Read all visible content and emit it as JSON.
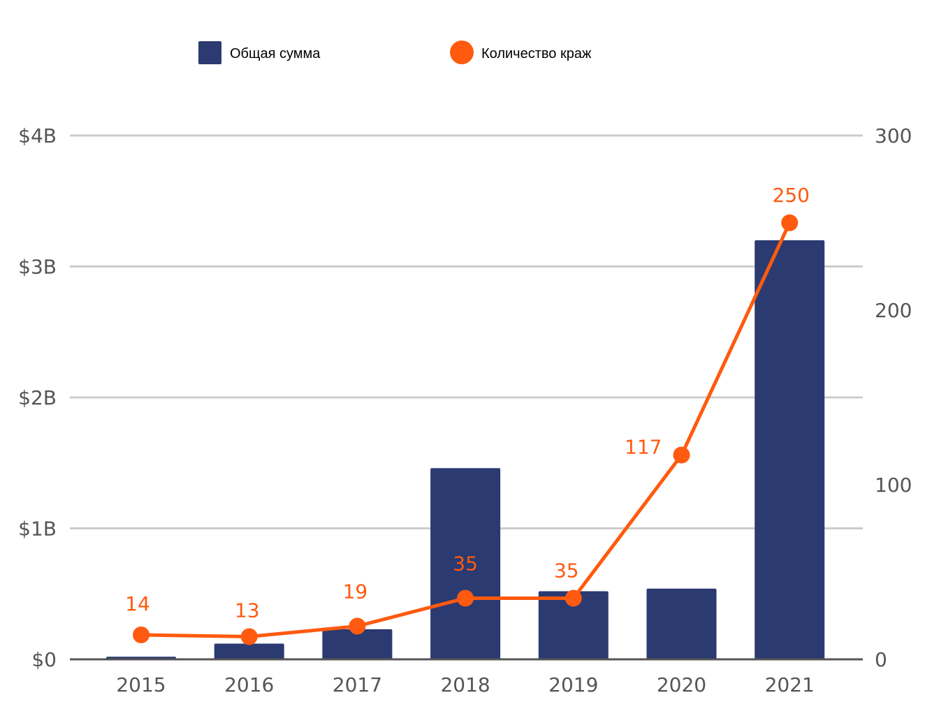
{
  "chart_data": {
    "type": "bar",
    "categories": [
      "2015",
      "2016",
      "2017",
      "2018",
      "2019",
      "2020",
      "2021"
    ],
    "series": [
      {
        "name": "Общая сумма",
        "type": "bar",
        "axis": "left",
        "color": "#2b3a70",
        "values": [
          0.02,
          0.12,
          0.23,
          1.46,
          0.52,
          0.54,
          3.2
        ]
      },
      {
        "name": "Количество краж",
        "type": "line",
        "axis": "right",
        "color": "#ff5a0f",
        "values": [
          14,
          13,
          19,
          35,
          35,
          117,
          250
        ],
        "labels": [
          "14",
          "13",
          "19",
          "35",
          "35",
          "117",
          "250"
        ]
      }
    ],
    "left_axis": {
      "ylim": [
        0,
        4
      ],
      "ticks": [
        0,
        1,
        2,
        3,
        4
      ],
      "tick_labels": [
        "$0",
        "$1B",
        "$2B",
        "$3B",
        "$4B"
      ]
    },
    "right_axis": {
      "ylim": [
        0,
        300
      ],
      "ticks": [
        0,
        100,
        200,
        300
      ],
      "tick_labels": [
        "0",
        "100",
        "200",
        "300"
      ]
    },
    "grid": true,
    "legend_position": "top",
    "gridline_color": "#cccccc",
    "axis_line_color": "#555555",
    "tick_color": "#555555"
  }
}
